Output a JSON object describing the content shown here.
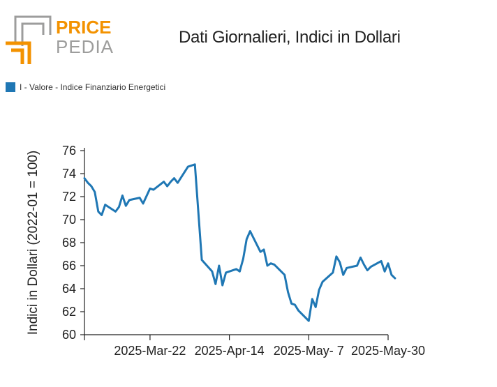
{
  "logo": {
    "word1": "PRICE",
    "word2": "PEDIA",
    "color_orange": "#f39200",
    "color_gray": "#9d9d9c"
  },
  "title": "Dati Giornalieri, Indici in Dollari",
  "chart_data": {
    "type": "line",
    "title": "Dati Giornalieri, Indici in Dollari",
    "ylabel": "Indici in Dollari (2022-01 = 100)",
    "xlabel": "",
    "ylim": [
      60,
      76
    ],
    "yticks": [
      60,
      62,
      64,
      66,
      68,
      70,
      72,
      74,
      76
    ],
    "x_start": "2025-Mar-03",
    "x_end": "2025-May-30",
    "xticks": [
      {
        "date": "2025-Mar-22",
        "label": "2025-Mar-22"
      },
      {
        "date": "2025-Apr-14",
        "label": "2025-Apr-14"
      },
      {
        "date": "2025-May-07",
        "label": "2025-May- 7"
      },
      {
        "date": "2025-May-30",
        "label": "2025-May-30"
      }
    ],
    "legend": "top-left",
    "grid": false,
    "series": [
      {
        "name": "I - Valore - Indice Finanziario Energetici",
        "color": "#1f77b4",
        "points": [
          [
            "2025-Mar-03",
            73.6
          ],
          [
            "2025-Mar-04",
            73.2
          ],
          [
            "2025-Mar-05",
            72.9
          ],
          [
            "2025-Mar-06",
            72.4
          ],
          [
            "2025-Mar-07",
            70.7
          ],
          [
            "2025-Mar-08",
            70.4
          ],
          [
            "2025-Mar-09",
            71.3
          ],
          [
            "2025-Mar-12",
            70.7
          ],
          [
            "2025-Mar-13",
            71.1
          ],
          [
            "2025-Mar-14",
            72.1
          ],
          [
            "2025-Mar-15",
            71.2
          ],
          [
            "2025-Mar-16",
            71.7
          ],
          [
            "2025-Mar-19",
            71.9
          ],
          [
            "2025-Mar-20",
            71.4
          ],
          [
            "2025-Mar-22",
            72.7
          ],
          [
            "2025-Mar-23",
            72.6
          ],
          [
            "2025-Mar-26",
            73.3
          ],
          [
            "2025-Mar-27",
            72.9
          ],
          [
            "2025-Mar-28",
            73.3
          ],
          [
            "2025-Mar-29",
            73.6
          ],
          [
            "2025-Mar-30",
            73.2
          ],
          [
            "2025-Apr-02",
            74.6
          ],
          [
            "2025-Apr-04",
            74.8
          ],
          [
            "2025-Apr-06",
            66.5
          ],
          [
            "2025-Apr-09",
            65.5
          ],
          [
            "2025-Apr-10",
            64.4
          ],
          [
            "2025-Apr-11",
            66.0
          ],
          [
            "2025-Apr-12",
            64.3
          ],
          [
            "2025-Apr-13",
            65.4
          ],
          [
            "2025-Apr-16",
            65.7
          ],
          [
            "2025-Apr-17",
            65.5
          ],
          [
            "2025-Apr-18",
            66.6
          ],
          [
            "2025-Apr-19",
            68.3
          ],
          [
            "2025-Apr-20",
            69.0
          ],
          [
            "2025-Apr-23",
            67.2
          ],
          [
            "2025-Apr-24",
            67.4
          ],
          [
            "2025-Apr-25",
            66.0
          ],
          [
            "2025-Apr-26",
            66.2
          ],
          [
            "2025-Apr-27",
            66.1
          ],
          [
            "2025-Apr-30",
            65.2
          ],
          [
            "2025-May-01",
            63.7
          ],
          [
            "2025-May-02",
            62.7
          ],
          [
            "2025-May-03",
            62.6
          ],
          [
            "2025-May-04",
            62.1
          ],
          [
            "2025-May-07",
            61.2
          ],
          [
            "2025-May-08",
            63.1
          ],
          [
            "2025-May-09",
            62.4
          ],
          [
            "2025-May-10",
            63.9
          ],
          [
            "2025-May-11",
            64.6
          ],
          [
            "2025-May-14",
            65.4
          ],
          [
            "2025-May-15",
            66.8
          ],
          [
            "2025-May-16",
            66.3
          ],
          [
            "2025-May-17",
            65.2
          ],
          [
            "2025-May-18",
            65.8
          ],
          [
            "2025-May-21",
            66.0
          ],
          [
            "2025-May-22",
            66.7
          ],
          [
            "2025-May-23",
            66.1
          ],
          [
            "2025-May-24",
            65.6
          ],
          [
            "2025-May-25",
            65.9
          ],
          [
            "2025-May-28",
            66.4
          ],
          [
            "2025-May-29",
            65.5
          ],
          [
            "2025-May-30",
            66.2
          ],
          [
            "2025-May-31",
            65.2
          ],
          [
            "2025-Jun-01",
            64.9
          ]
        ]
      }
    ]
  }
}
